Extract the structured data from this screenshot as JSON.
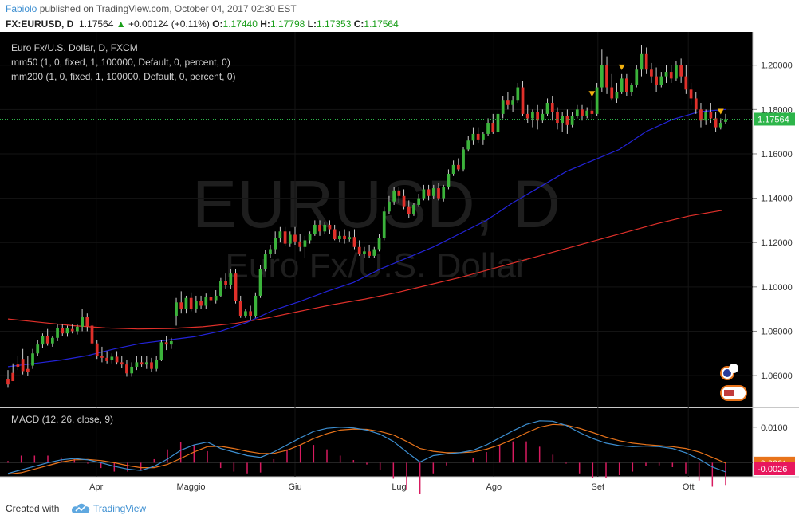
{
  "header": {
    "author": "Fabiolo",
    "published_text": "published on TradingView.com, October 04, 2017 02:30 EST",
    "symbol": "FX:EURUSD, D",
    "last": "1.17564",
    "change": "+0.00124 (+0.11%)",
    "o_label": "O:",
    "o": "1.17440",
    "h_label": "H:",
    "h": "1.17798",
    "l_label": "L:",
    "l": "1.17353",
    "c_label": "C:",
    "c": "1.17564"
  },
  "legend": {
    "title": "Euro Fx/U.S. Dollar, D, FXCM",
    "mm50": "mm50 (1, 0, fixed, 1, 100000, Default, 0, percent, 0)",
    "mm200": "mm200 (1, 0, fixed, 1, 100000, Default, 0, percent, 0)"
  },
  "watermark": {
    "line1": "EURUSD, D",
    "line2": "Euro Fx/U.S. Dollar"
  },
  "macd_title": "MACD (12, 26, close, 9)",
  "footer": {
    "created": "Created with",
    "brand": "TradingView"
  },
  "colors": {
    "background": "#000000",
    "bull": "#3bb33b",
    "bear": "#e0302a",
    "ma50": "#2323d8",
    "ma200": "#e0302a",
    "macd": "#3d8fd1",
    "signal": "#e8731a",
    "hist": "#d81b60",
    "price_tag": "#2db54a",
    "marker": "#f2b10f"
  },
  "chart_data": [
    {
      "type": "candlestick",
      "title": "Euro Fx/U.S. Dollar, D, FXCM",
      "x_tick_labels": [
        "Apr",
        "Maggio",
        "Giu",
        "Lug",
        "Ago",
        "Set",
        "Ott"
      ],
      "y_ticks": [
        "1.06000",
        "1.08000",
        "1.10000",
        "1.12000",
        "1.14000",
        "1.16000",
        "1.18000",
        "1.20000"
      ],
      "ylim": [
        1.046,
        1.215
      ],
      "last_price_label": "1.17564",
      "last_price": 1.17564,
      "candles": [
        [
          1.0585,
          1.0625,
          1.056,
          1.0545
        ],
        [
          1.0612,
          1.0655,
          1.0575,
          1.0595
        ],
        [
          1.065,
          1.069,
          1.064,
          1.0625
        ],
        [
          1.0675,
          1.072,
          1.062,
          1.0605
        ],
        [
          1.063,
          1.069,
          1.0615,
          1.06
        ],
        [
          1.0645,
          1.072,
          1.07,
          1.063
        ],
        [
          1.07,
          1.076,
          1.074,
          1.069
        ],
        [
          1.074,
          1.079,
          1.078,
          1.0725
        ],
        [
          1.078,
          1.081,
          1.0745,
          1.0735
        ],
        [
          1.0745,
          1.078,
          1.077,
          1.073
        ],
        [
          1.077,
          1.083,
          1.0815,
          1.0755
        ],
        [
          1.0815,
          1.083,
          1.079,
          1.078
        ],
        [
          1.079,
          1.0825,
          1.0815,
          1.0775
        ],
        [
          1.081,
          1.083,
          1.08,
          1.079
        ],
        [
          1.08,
          1.083,
          1.082,
          1.0785
        ],
        [
          1.082,
          1.09,
          1.0865,
          1.08
        ],
        [
          1.0865,
          1.088,
          1.082,
          1.08
        ],
        [
          1.0825,
          1.084,
          1.0745,
          1.0735
        ],
        [
          1.0745,
          1.076,
          1.069,
          1.0675
        ],
        [
          1.069,
          1.073,
          1.068,
          1.066
        ],
        [
          1.068,
          1.071,
          1.0665,
          1.0655
        ],
        [
          1.067,
          1.07,
          1.0685,
          1.0655
        ],
        [
          1.0685,
          1.071,
          1.066,
          1.065
        ],
        [
          1.066,
          1.069,
          1.065,
          1.0635
        ],
        [
          1.065,
          1.067,
          1.061,
          1.0595
        ],
        [
          1.061,
          1.066,
          1.064,
          1.0595
        ],
        [
          1.064,
          1.069,
          1.066,
          1.0625
        ],
        [
          1.066,
          1.069,
          1.065,
          1.064
        ],
        [
          1.065,
          1.069,
          1.066,
          1.063
        ],
        [
          1.066,
          1.068,
          1.063,
          1.0615
        ],
        [
          1.063,
          1.069,
          1.067,
          1.062
        ],
        [
          1.067,
          1.076,
          1.075,
          1.0665
        ],
        [
          1.075,
          1.078,
          1.074,
          1.0715
        ],
        [
          1.074,
          1.077,
          1.0755,
          1.072
        ],
        [
          1.087,
          1.095,
          1.093,
          1.0825
        ],
        [
          1.093,
          1.098,
          1.09,
          1.088
        ],
        [
          1.09,
          1.096,
          1.095,
          1.088
        ],
        [
          1.095,
          1.0975,
          1.09,
          1.089
        ],
        [
          1.09,
          1.096,
          1.0935,
          1.0885
        ],
        [
          1.0935,
          1.096,
          1.0915,
          1.09
        ],
        [
          1.0915,
          1.097,
          1.0955,
          1.09
        ],
        [
          1.0955,
          1.097,
          1.094,
          1.092
        ],
        [
          1.094,
          1.0985,
          1.096,
          1.0925
        ],
        [
          1.096,
          1.104,
          1.1025,
          1.0955
        ],
        [
          1.1025,
          1.106,
          1.101,
          1.099
        ],
        [
          1.101,
          1.108,
          1.106,
          1.099
        ],
        [
          1.106,
          1.108,
          1.0935,
          1.0925
        ],
        [
          1.0935,
          1.096,
          1.087,
          1.086
        ],
        [
          1.087,
          1.09,
          1.089,
          1.086
        ],
        [
          1.089,
          1.0915,
          1.087,
          1.085
        ],
        [
          1.087,
          1.0975,
          1.096,
          1.086
        ],
        [
          1.096,
          1.11,
          1.108,
          1.095
        ],
        [
          1.108,
          1.1165,
          1.115,
          1.107
        ],
        [
          1.115,
          1.119,
          1.117,
          1.113
        ],
        [
          1.117,
          1.125,
          1.122,
          1.115
        ],
        [
          1.122,
          1.127,
          1.125,
          1.12
        ],
        [
          1.125,
          1.127,
          1.1195,
          1.1185
        ],
        [
          1.1195,
          1.125,
          1.1235,
          1.118
        ],
        [
          1.1235,
          1.127,
          1.1205,
          1.119
        ],
        [
          1.1205,
          1.124,
          1.118,
          1.116
        ],
        [
          1.118,
          1.123,
          1.121,
          1.113
        ],
        [
          1.121,
          1.125,
          1.124,
          1.1195
        ],
        [
          1.124,
          1.13,
          1.128,
          1.123
        ],
        [
          1.128,
          1.13,
          1.125,
          1.123
        ],
        [
          1.125,
          1.129,
          1.128,
          1.124
        ],
        [
          1.128,
          1.13,
          1.126,
          1.124
        ],
        [
          1.126,
          1.128,
          1.1215,
          1.121
        ],
        [
          1.1215,
          1.125,
          1.123,
          1.12
        ],
        [
          1.123,
          1.126,
          1.1215,
          1.1195
        ],
        [
          1.1215,
          1.125,
          1.1225,
          1.1205
        ],
        [
          1.1225,
          1.126,
          1.118,
          1.117
        ],
        [
          1.118,
          1.121,
          1.115,
          1.114
        ],
        [
          1.115,
          1.118,
          1.116,
          1.113
        ],
        [
          1.116,
          1.119,
          1.114,
          1.113
        ],
        [
          1.114,
          1.118,
          1.117,
          1.113
        ],
        [
          1.117,
          1.124,
          1.122,
          1.116
        ],
        [
          1.122,
          1.136,
          1.134,
          1.121
        ],
        [
          1.134,
          1.141,
          1.1385,
          1.133
        ],
        [
          1.1385,
          1.145,
          1.1435,
          1.137
        ],
        [
          1.1435,
          1.145,
          1.141,
          1.138
        ],
        [
          1.141,
          1.144,
          1.136,
          1.135
        ],
        [
          1.136,
          1.139,
          1.133,
          1.131
        ],
        [
          1.133,
          1.138,
          1.137,
          1.132
        ],
        [
          1.137,
          1.142,
          1.14,
          1.136
        ],
        [
          1.14,
          1.146,
          1.144,
          1.139
        ],
        [
          1.144,
          1.146,
          1.141,
          1.139
        ],
        [
          1.141,
          1.146,
          1.1445,
          1.1395
        ],
        [
          1.1445,
          1.147,
          1.14,
          1.139
        ],
        [
          1.14,
          1.146,
          1.145,
          1.1385
        ],
        [
          1.145,
          1.153,
          1.151,
          1.144
        ],
        [
          1.151,
          1.157,
          1.155,
          1.15
        ],
        [
          1.155,
          1.158,
          1.153,
          1.152
        ],
        [
          1.153,
          1.163,
          1.162,
          1.152
        ],
        [
          1.162,
          1.168,
          1.166,
          1.161
        ],
        [
          1.166,
          1.172,
          1.169,
          1.164
        ],
        [
          1.169,
          1.172,
          1.1665,
          1.165
        ],
        [
          1.1665,
          1.17,
          1.169,
          1.164
        ],
        [
          1.169,
          1.176,
          1.174,
          1.168
        ],
        [
          1.174,
          1.178,
          1.17,
          1.169
        ],
        [
          1.17,
          1.18,
          1.178,
          1.169
        ],
        [
          1.178,
          1.186,
          1.184,
          1.176
        ],
        [
          1.184,
          1.188,
          1.182,
          1.18
        ],
        [
          1.182,
          1.186,
          1.184,
          1.179
        ],
        [
          1.184,
          1.192,
          1.19,
          1.183
        ],
        [
          1.19,
          1.193,
          1.178,
          1.177
        ],
        [
          1.178,
          1.182,
          1.176,
          1.174
        ],
        [
          1.176,
          1.18,
          1.179,
          1.172
        ],
        [
          1.179,
          1.182,
          1.175,
          1.171
        ],
        [
          1.175,
          1.18,
          1.178,
          1.174
        ],
        [
          1.178,
          1.185,
          1.183,
          1.177
        ],
        [
          1.183,
          1.186,
          1.179,
          1.175
        ],
        [
          1.179,
          1.181,
          1.174,
          1.171
        ],
        [
          1.174,
          1.179,
          1.177,
          1.17
        ],
        [
          1.177,
          1.18,
          1.173,
          1.169
        ],
        [
          1.173,
          1.179,
          1.177,
          1.172
        ],
        [
          1.177,
          1.182,
          1.18,
          1.176
        ],
        [
          1.18,
          1.182,
          1.177,
          1.175
        ],
        [
          1.177,
          1.181,
          1.1795,
          1.176
        ],
        [
          1.1795,
          1.184,
          1.178,
          1.176
        ],
        [
          1.178,
          1.192,
          1.19,
          1.177
        ],
        [
          1.19,
          1.207,
          1.2,
          1.188
        ],
        [
          1.2,
          1.204,
          1.19,
          1.187
        ],
        [
          1.19,
          1.196,
          1.185,
          1.184
        ],
        [
          1.185,
          1.192,
          1.188,
          1.183
        ],
        [
          1.188,
          1.196,
          1.194,
          1.187
        ],
        [
          1.194,
          1.196,
          1.188,
          1.186
        ],
        [
          1.188,
          1.192,
          1.191,
          1.186
        ],
        [
          1.191,
          1.2,
          1.198,
          1.19
        ],
        [
          1.198,
          1.209,
          1.205,
          1.195
        ],
        [
          1.205,
          1.208,
          1.198,
          1.196
        ],
        [
          1.198,
          1.201,
          1.195,
          1.192
        ],
        [
          1.195,
          1.199,
          1.191,
          1.188
        ],
        [
          1.191,
          1.197,
          1.195,
          1.19
        ],
        [
          1.195,
          1.2,
          1.197,
          1.192
        ],
        [
          1.197,
          1.2,
          1.194,
          1.192
        ],
        [
          1.194,
          1.202,
          1.2,
          1.193
        ],
        [
          1.2,
          1.203,
          1.195,
          1.192
        ],
        [
          1.195,
          1.2,
          1.189,
          1.187
        ],
        [
          1.189,
          1.192,
          1.185,
          1.182
        ],
        [
          1.185,
          1.188,
          1.18,
          1.178
        ],
        [
          1.18,
          1.183,
          1.175,
          1.172
        ],
        [
          1.175,
          1.18,
          1.179,
          1.173
        ],
        [
          1.179,
          1.183,
          1.176,
          1.174
        ],
        [
          1.176,
          1.179,
          1.172,
          1.17
        ],
        [
          1.172,
          1.176,
          1.174,
          1.171
        ],
        [
          1.1744,
          1.178,
          1.17564,
          1.1735
        ]
      ],
      "ma50": [
        1.064,
        1.0655,
        1.067,
        1.069,
        1.072,
        1.0745,
        1.076,
        1.0775,
        1.08,
        1.084,
        1.0895,
        1.0935,
        1.098,
        1.102,
        1.108,
        1.113,
        1.118,
        1.124,
        1.13,
        1.138,
        1.145,
        1.152,
        1.157,
        1.162,
        1.17,
        1.1755,
        1.179,
        1.18
      ],
      "ma200": [
        1.0855,
        1.084,
        1.0825,
        1.0815,
        1.081,
        1.0812,
        1.082,
        1.0835,
        1.086,
        1.089,
        1.092,
        1.0945,
        1.0975,
        1.101,
        1.1045,
        1.1085,
        1.1125,
        1.1165,
        1.1205,
        1.1245,
        1.1285,
        1.132,
        1.1345
      ],
      "markers": [
        {
          "candle": 118,
          "shape": "triangle-down"
        },
        {
          "candle": 124,
          "shape": "triangle-down"
        },
        {
          "candle": 144,
          "shape": "triangle-down"
        }
      ]
    },
    {
      "type": "line",
      "title": "MACD (12, 26, close, 9)",
      "y_ticks": [
        "0.0100"
      ],
      "ylim": [
        -0.0035,
        0.014
      ],
      "value_labels": [
        "-0.0001",
        "-0.0026"
      ],
      "series": [
        {
          "role": "macd",
          "values": [
            -0.003,
            -0.002,
            -0.001,
            0.0,
            0.0008,
            0.0012,
            0.0008,
            0.0,
            -0.001,
            -0.0018,
            -0.0022,
            -0.001,
            0.001,
            0.0035,
            0.005,
            0.0058,
            0.004,
            0.003,
            0.002,
            0.0015,
            0.003,
            0.005,
            0.007,
            0.0088,
            0.0097,
            0.01,
            0.0098,
            0.0092,
            0.008,
            0.006,
            0.003,
            0.0002,
            0.002,
            0.0025,
            0.0028,
            0.0035,
            0.005,
            0.007,
            0.009,
            0.0108,
            0.0118,
            0.0117,
            0.0105,
            0.0085,
            0.0068,
            0.0055,
            0.0048,
            0.0045,
            0.0047,
            0.0045,
            0.004,
            0.0028,
            0.001,
            -0.0012,
            -0.0026
          ]
        },
        {
          "role": "signal",
          "values": [
            -0.0032,
            -0.0028,
            -0.0018,
            -0.0008,
            0.0002,
            0.0008,
            0.0009,
            0.0006,
            0.0,
            -0.0008,
            -0.0014,
            -0.0014,
            -0.0005,
            0.0012,
            0.003,
            0.0045,
            0.0046,
            0.004,
            0.0032,
            0.0026,
            0.0026,
            0.0035,
            0.005,
            0.0068,
            0.0082,
            0.0092,
            0.0095,
            0.0094,
            0.0088,
            0.0078,
            0.006,
            0.004,
            0.0032,
            0.0028,
            0.0028,
            0.003,
            0.0038,
            0.005,
            0.0066,
            0.0084,
            0.01,
            0.0108,
            0.0106,
            0.0097,
            0.0085,
            0.0072,
            0.0062,
            0.0055,
            0.0051,
            0.0048,
            0.0045,
            0.004,
            0.003,
            0.0015,
            -0.0001
          ]
        }
      ]
    }
  ]
}
